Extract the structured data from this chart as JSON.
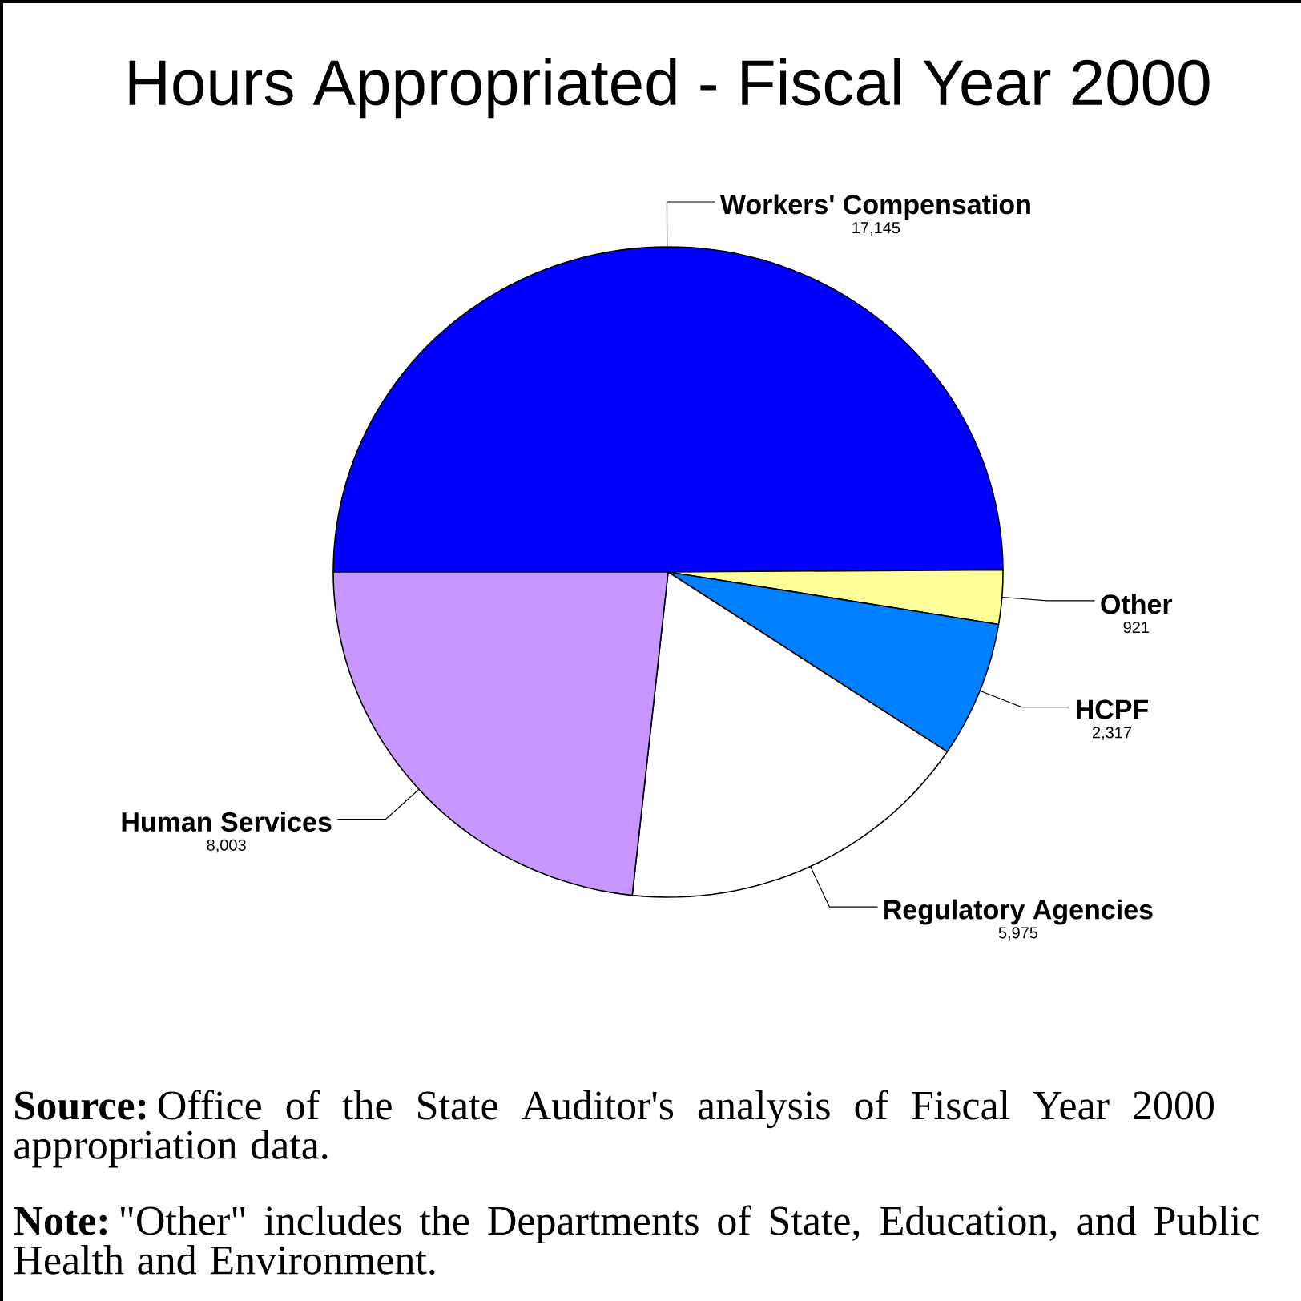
{
  "chart_data": {
    "type": "pie",
    "title": "Hours Appropriated - Fiscal Year 2000",
    "categories": [
      "Workers' Compensation",
      "Other",
      "HCPF",
      "Regulatory Agencies",
      "Human Services"
    ],
    "values": [
      17145,
      921,
      2317,
      5975,
      8003
    ],
    "value_labels": [
      "17,145",
      "921",
      "2,317",
      "5,975",
      "8,003"
    ],
    "colors": [
      "#0000ff",
      "#ffff99",
      "#0080ff",
      "#ffffff",
      "#c896ff"
    ],
    "annotations": [
      "**Source:** Office of the State Auditor's analysis of Fiscal Year 2000 appropriation data.",
      "**Note:** \"Other\" includes the Departments of State, Education, and Public Health and Environment."
    ]
  }
}
